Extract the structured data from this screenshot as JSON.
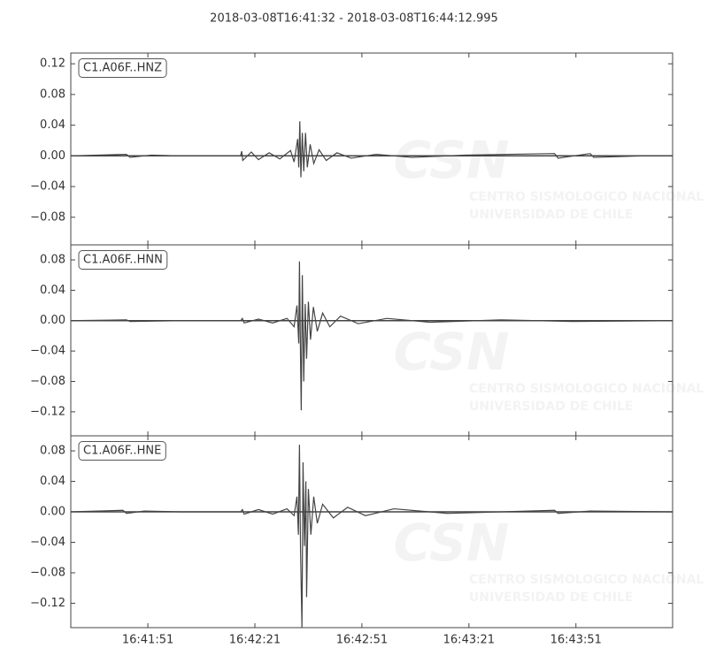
{
  "title": "2018-03-08T16:41:32  -  2018-03-08T16:44:12.995",
  "chart_data": [
    {
      "type": "line",
      "label": "C1.A06F..HNZ",
      "color": "#444444",
      "xlim": [
        29.4,
        198.1
      ],
      "ylim": [
        -0.116,
        0.134
      ],
      "yticks": [
        {
          "value": -0.08,
          "label": "−0.08"
        },
        {
          "value": -0.04,
          "label": "−0.04"
        },
        {
          "value": 0,
          "label": "0.00"
        },
        0.04,
        0.08,
        0.12
      ],
      "watermark": {
        "logo": "CSN",
        "line1": "CENTRO SISMOLOGICO NACIONAL",
        "line2": "UNIVERSIDAD DE CHILE"
      },
      "x": [
        29.4,
        45,
        46,
        52,
        60,
        77,
        77.3,
        77.6,
        80,
        82,
        85,
        88,
        91,
        92,
        93,
        93.3,
        93.6,
        93.9,
        94.3,
        94.7,
        95.2,
        95.7,
        96.5,
        97.5,
        99,
        101,
        104,
        108,
        115,
        125,
        140,
        165,
        166,
        175,
        176,
        190,
        198.1
      ],
      "values": [
        0,
        0.002,
        -0.002,
        0.001,
        0,
        0,
        0.006,
        -0.006,
        0.005,
        -0.005,
        0.004,
        -0.004,
        0.007,
        -0.008,
        0.022,
        -0.015,
        0.045,
        -0.028,
        0.03,
        -0.02,
        0.03,
        -0.015,
        0.015,
        -0.01,
        0.008,
        -0.006,
        0.004,
        -0.003,
        0.002,
        -0.002,
        0.001,
        0.003,
        -0.003,
        0.003,
        -0.002,
        0,
        0
      ]
    },
    {
      "type": "line",
      "label": "C1.A06F..HNN",
      "color": "#444444",
      "xlim": [
        29.4,
        198.1
      ],
      "ylim": [
        -0.1516,
        0.0998
      ],
      "yticks": [
        {
          "value": -0.12,
          "label": "−0.12"
        },
        {
          "value": -0.08,
          "label": "−0.08"
        },
        {
          "value": -0.04,
          "label": "−0.04"
        },
        {
          "value": 0,
          "label": "0.00"
        },
        0.04,
        0.08
      ],
      "watermark": {
        "logo": "CSN",
        "line1": "CENTRO SISMOLOGICO NACIONAL",
        "line2": "UNIVERSIDAD DE CHILE"
      },
      "x": [
        29.4,
        45,
        46,
        60,
        77,
        77.5,
        78,
        82,
        86,
        90,
        92,
        92.8,
        93.3,
        93.5,
        93.8,
        94,
        94.3,
        94.7,
        95.1,
        95.5,
        96,
        96.6,
        97.4,
        98.5,
        100,
        102,
        105,
        110,
        118,
        130,
        150,
        170,
        198.1
      ],
      "values": [
        0,
        0.001,
        -0.001,
        0,
        0,
        0.003,
        -0.003,
        0.002,
        -0.003,
        0.003,
        -0.008,
        0.02,
        -0.03,
        0.078,
        -0.05,
        -0.118,
        0.06,
        -0.08,
        0.022,
        -0.05,
        0.025,
        -0.025,
        0.018,
        -0.014,
        0.01,
        -0.008,
        0.006,
        -0.004,
        0.003,
        -0.002,
        0.001,
        -0.001,
        0
      ]
    },
    {
      "type": "line",
      "label": "C1.A06F..HNE",
      "color": "#444444",
      "xlim": [
        29.4,
        198.1
      ],
      "ylim": [
        -0.152,
        0.0998
      ],
      "xticks": [
        {
          "value": 51,
          "label": "16:41:51"
        },
        {
          "value": 81,
          "label": "16:42:21"
        },
        {
          "value": 111,
          "label": "16:42:51"
        },
        {
          "value": 141,
          "label": "16:43:21"
        },
        {
          "value": 171,
          "label": "16:43:51"
        }
      ],
      "yticks": [
        {
          "value": -0.12,
          "label": "−0.12"
        },
        {
          "value": -0.08,
          "label": "−0.08"
        },
        {
          "value": -0.04,
          "label": "−0.04"
        },
        {
          "value": 0,
          "label": "0.00"
        },
        0.04,
        0.08
      ],
      "watermark": {
        "logo": "CSN",
        "line1": "CENTRO SISMOLOGICO NACIONAL",
        "line2": "UNIVERSIDAD DE CHILE"
      },
      "x": [
        29.4,
        44,
        45,
        50,
        60,
        77,
        77.5,
        78,
        82,
        86,
        90,
        92,
        92.8,
        93.2,
        93.5,
        93.8,
        94.2,
        94.5,
        94.9,
        95.3,
        95.5,
        96,
        96.7,
        97.5,
        98.5,
        100,
        103,
        107,
        112,
        120,
        135,
        165,
        166,
        175,
        198.1
      ],
      "values": [
        0,
        0.002,
        -0.002,
        0.001,
        0,
        0,
        0.003,
        -0.003,
        0.003,
        -0.003,
        0.004,
        -0.005,
        0.02,
        -0.03,
        0.088,
        -0.05,
        -0.152,
        0.065,
        -0.045,
        0.04,
        -0.112,
        0.03,
        -0.03,
        0.02,
        -0.015,
        0.01,
        -0.008,
        0.006,
        -0.005,
        0.004,
        -0.002,
        0.002,
        -0.002,
        0.001,
        0
      ]
    }
  ]
}
